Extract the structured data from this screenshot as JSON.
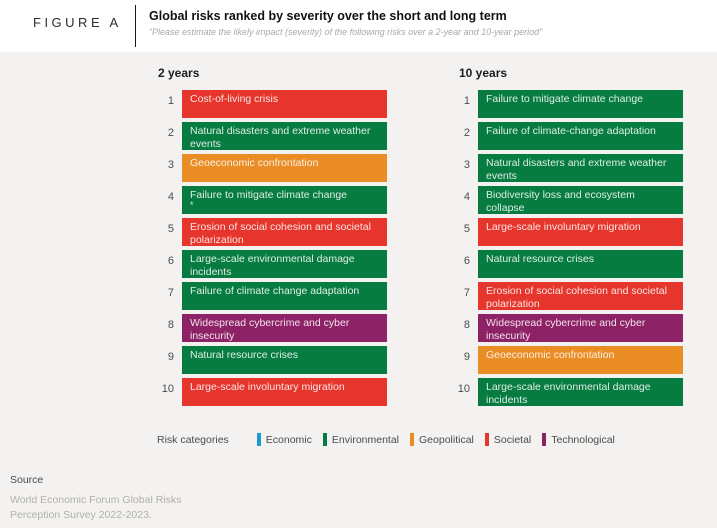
{
  "figure_label": "FIGURE A",
  "header": {
    "title": "Global risks ranked by severity over the short and long term",
    "subtitle": "“Please estimate the likely impact (severity) of the following risks over a 2-year and 10-year period”"
  },
  "chart_data": {
    "type": "table",
    "title": "Global risks ranked by severity over the short and long term",
    "subtitle": "Please estimate the likely impact (severity) of the following risks over a 2-year and 10-year period",
    "legend_position": "bottom",
    "category_colors": {
      "economic": "#1a9ad6",
      "environmental": "#077c41",
      "geopolitical": "#ea8d24",
      "societal": "#e5352c",
      "technological": "#8e2267"
    },
    "columns": [
      {
        "heading": "2 years",
        "rows": [
          {
            "rank": "1",
            "label": "Cost-of-living crisis",
            "category": "societal"
          },
          {
            "rank": "2",
            "label": "Natural disasters and extreme weather events",
            "category": "environmental"
          },
          {
            "rank": "3",
            "label": "Geoeconomic confrontation",
            "category": "geopolitical"
          },
          {
            "rank": "4",
            "label": "Failure to mitigate climate change",
            "footnote": "*",
            "category": "environmental"
          },
          {
            "rank": "5",
            "label": "Erosion of social cohesion and societal polarization",
            "category": "societal"
          },
          {
            "rank": "6",
            "label": "Large-scale environmental damage incidents",
            "category": "environmental"
          },
          {
            "rank": "7",
            "label": "Failure of climate change adaptation",
            "category": "environmental"
          },
          {
            "rank": "8",
            "label": "Widespread cybercrime and cyber insecurity",
            "category": "technological"
          },
          {
            "rank": "9",
            "label": "Natural resource crises",
            "category": "environmental"
          },
          {
            "rank": "10",
            "label": "Large-scale involuntary migration",
            "category": "societal"
          }
        ]
      },
      {
        "heading": "10 years",
        "rows": [
          {
            "rank": "1",
            "label": "Failure to mitigate climate change",
            "category": "environmental"
          },
          {
            "rank": "2",
            "label": "Failure of climate-change adaptation",
            "category": "environmental"
          },
          {
            "rank": "3",
            "label": "Natural disasters and extreme weather events",
            "category": "environmental"
          },
          {
            "rank": "4",
            "label": "Biodiversity loss and ecosystem collapse",
            "category": "environmental"
          },
          {
            "rank": "5",
            "label": "Large-scale involuntary migration",
            "category": "societal"
          },
          {
            "rank": "6",
            "label": "Natural resource crises",
            "category": "environmental"
          },
          {
            "rank": "7",
            "label": "Erosion of social cohesion and societal polarization",
            "category": "societal"
          },
          {
            "rank": "8",
            "label": "Widespread cybercrime and cyber insecurity",
            "category": "technological"
          },
          {
            "rank": "9",
            "label": "Geoeconomic confrontation",
            "category": "geopolitical"
          },
          {
            "rank": "10",
            "label": "Large-scale environmental damage incidents",
            "category": "environmental"
          }
        ]
      }
    ]
  },
  "legend": {
    "label": "Risk categories",
    "items": [
      {
        "label": "Economic",
        "color": "#1a9ad6"
      },
      {
        "label": "Environmental",
        "color": "#077c41"
      },
      {
        "label": "Geopolitical",
        "color": "#ea8d24"
      },
      {
        "label": "Societal",
        "color": "#e5352c"
      },
      {
        "label": "Technological",
        "color": "#8e2267"
      }
    ]
  },
  "footer": {
    "label": "Source",
    "lines": [
      "World Economic Forum Global Risks",
      "Perception Survey 2022-2023."
    ]
  }
}
